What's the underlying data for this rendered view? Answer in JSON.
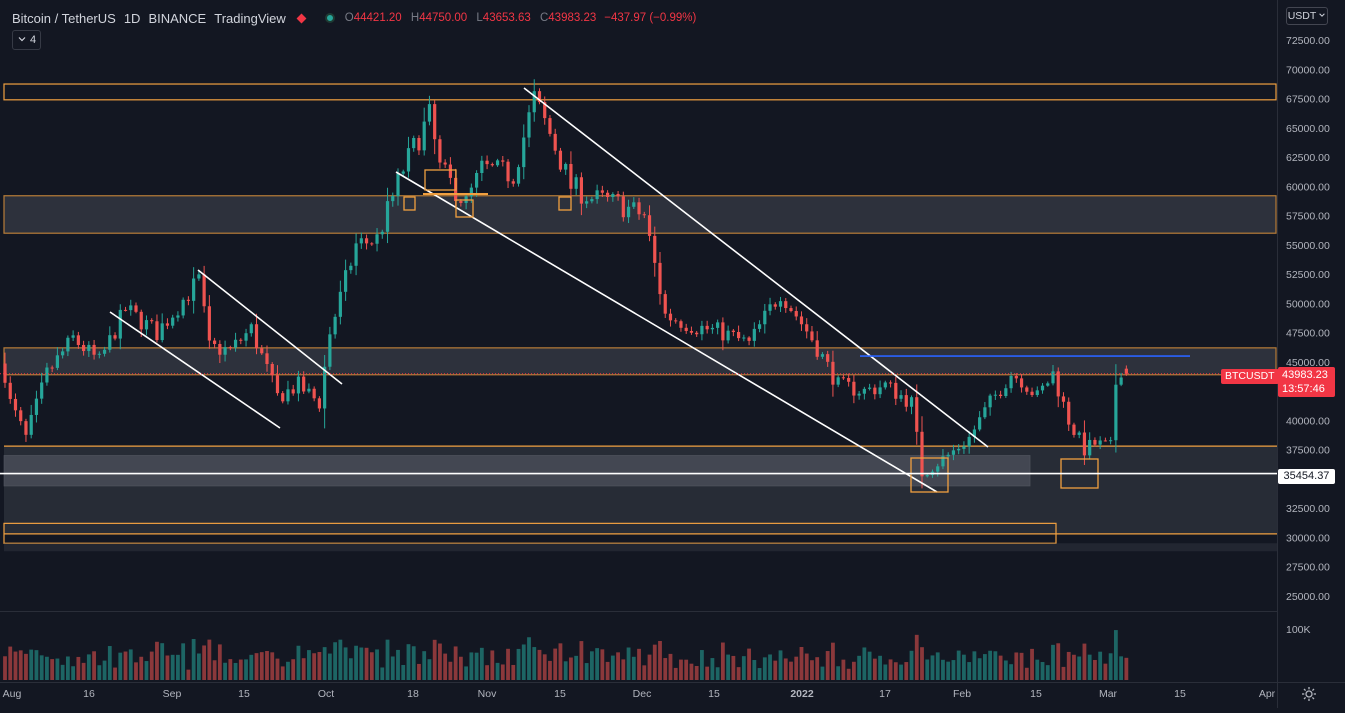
{
  "legend": {
    "symbol": "Bitcoin / TetherUS",
    "interval": "1D",
    "exchange": "BINANCE",
    "source": "TradingView",
    "open": "44421.20",
    "high": "44750.00",
    "low": "43653.63",
    "close": "43983.23",
    "change": "−437.97 (−0.99%)",
    "indicators_count": "4"
  },
  "currency_button": "USDT",
  "price_axis": {
    "ticks": [
      "72500.00",
      "70000.00",
      "67500.00",
      "65000.00",
      "62500.00",
      "60000.00",
      "57500.00",
      "55000.00",
      "52500.00",
      "50000.00",
      "47500.00",
      "45000.00",
      "42500.00",
      "40000.00",
      "37500.00",
      "35000.00",
      "32500.00",
      "30000.00",
      "27500.00",
      "25000.00"
    ],
    "volume_label": "100K",
    "last_price": "43983.23",
    "countdown": "13:57:46",
    "symbol_tag": "BTCUSDT",
    "hline_label": "35454.37"
  },
  "time_axis": {
    "labels": [
      "Aug",
      "16",
      "Sep",
      "15",
      "Oct",
      "18",
      "Nov",
      "15",
      "Dec",
      "15",
      "2022",
      "17",
      "Feb",
      "15",
      "Mar",
      "15",
      "Apr"
    ]
  },
  "colors": {
    "background": "#131722",
    "bull": "#26a69a",
    "bear": "#ef5350",
    "zone_border": "#f0a040",
    "zone_fill": "#363a45",
    "trendline": "#ffffff",
    "resistance_line": "#2962ff"
  },
  "icons": [
    "settings-gear-icon",
    "chevron-down-icon",
    "status-dot-icon"
  ],
  "chart_data": {
    "type": "candlestick",
    "interval": "1D",
    "y_scale": "linear",
    "ylim": [
      23500,
      74000
    ],
    "anchors": {
      "2021-08-01": 41500,
      "2021-08-04": 38500,
      "2021-08-08": 44000,
      "2021-08-13": 47000,
      "2021-08-18": 45000,
      "2021-08-23": 49500,
      "2021-08-29": 47500,
      "2021-09-06": 52000,
      "2021-09-08": 46200,
      "2021-09-12": 46000,
      "2021-09-16": 47800,
      "2021-09-21": 42000,
      "2021-09-25": 43000,
      "2021-09-29": 41500,
      "2021-10-01": 47500,
      "2021-10-06": 55000,
      "2021-10-10": 55500,
      "2021-10-15": 61500,
      "2021-10-20": 66000,
      "2021-10-22": 61500,
      "2021-10-27": 58500,
      "2021-10-30": 61500,
      "2021-11-05": 61000,
      "2021-11-09": 67500,
      "2021-11-12": 64500,
      "2021-11-16": 60000,
      "2021-11-20": 59000,
      "2021-11-25": 58500,
      "2021-11-30": 57500,
      "2021-12-04": 49000,
      "2021-12-10": 48000,
      "2021-12-15": 47500,
      "2021-12-20": 46500,
      "2021-12-26": 51000,
      "2022-01-01": 47000,
      "2022-01-06": 43000,
      "2022-01-11": 42500,
      "2022-01-15": 43000,
      "2022-01-20": 41500,
      "2022-01-22": 35500,
      "2022-01-27": 37000,
      "2022-01-31": 38500,
      "2022-02-04": 41500,
      "2022-02-08": 44000,
      "2022-02-10": 43500,
      "2022-02-13": 42000,
      "2022-02-16": 44000,
      "2022-02-19": 40000,
      "2022-02-22": 37500,
      "2022-02-24": 38000,
      "2022-02-27": 37700,
      "2022-02-28": 43200,
      "2022-03-01": 44421,
      "2022-03-02": 43983
    },
    "zones": [
      {
        "name": "Resistance 67.5k–68.8k",
        "from": 67400,
        "to": 68750,
        "style": "orange-outline"
      },
      {
        "name": "Zone 56k–59.2k",
        "from": 56000,
        "to": 59200,
        "style": "orange-outline-gray-fill"
      },
      {
        "name": "Zone 43.9k–46.2k",
        "from": 43900,
        "to": 46200,
        "style": "orange-outline-gray-fill"
      },
      {
        "name": "Support band 34.7k–37.8k",
        "from": 34700,
        "to": 37800,
        "style": "orange-top-gray-fill"
      },
      {
        "name": "Support 29.5k–31.2k",
        "from": 29500,
        "to": 31200,
        "style": "orange-outline"
      }
    ],
    "horizontal_line": 35454.37,
    "resistance_line": 45500
  }
}
